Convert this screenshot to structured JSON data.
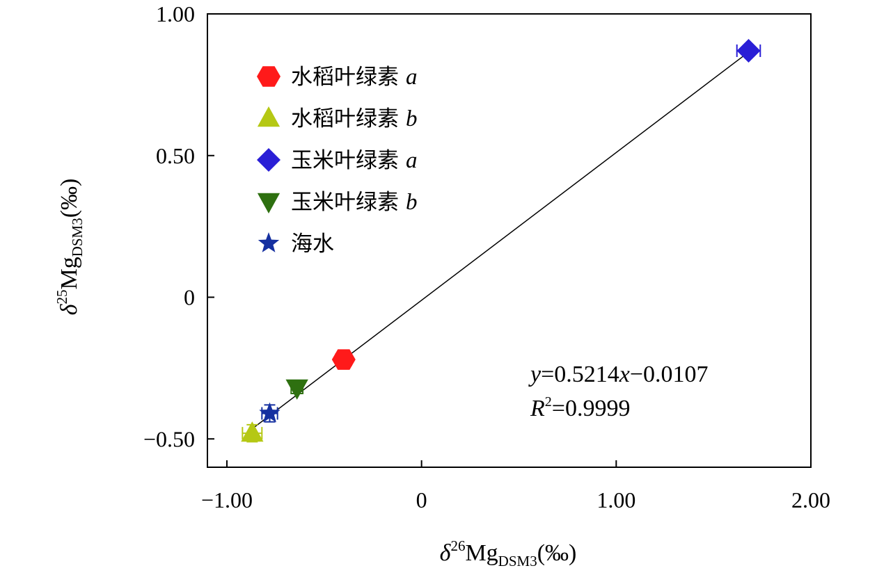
{
  "chart_data": {
    "type": "scatter",
    "xlabel": {
      "symbol": "δ",
      "sup": "26",
      "base": "Mg",
      "sub": "DSM3",
      "unit": "(‰)"
    },
    "ylabel": {
      "symbol": "δ",
      "sup": "25",
      "base": "Mg",
      "sub": "DSM3",
      "unit": "(‰)"
    },
    "xlim": [
      -1.1,
      2.0
    ],
    "ylim": [
      -0.6,
      1.0
    ],
    "x_ticks": [
      {
        "value": -1.0,
        "label": "−1.00"
      },
      {
        "value": 0,
        "label": "0"
      },
      {
        "value": 1.0,
        "label": "1.00"
      },
      {
        "value": 2.0,
        "label": "2.00"
      }
    ],
    "y_ticks": [
      {
        "value": -0.5,
        "label": "−0.50"
      },
      {
        "value": 0,
        "label": "0"
      },
      {
        "value": 0.5,
        "label": "0.50"
      },
      {
        "value": 1.0,
        "label": "1.00"
      }
    ],
    "series": [
      {
        "name": "水稻叶绿素",
        "var": "a",
        "marker": "hexagon",
        "color": "#ff1a1a",
        "x": -0.4,
        "y": -0.22,
        "xerr": 0.04,
        "yerr": 0.03
      },
      {
        "name": "水稻叶绿素",
        "var": "b",
        "marker": "triangle-up",
        "color": "#b5c814",
        "x": -0.87,
        "y": -0.48,
        "xerr": 0.05,
        "yerr": 0.03
      },
      {
        "name": "玉米叶绿素",
        "var": "a",
        "marker": "diamond",
        "color": "#2a1fd6",
        "x": 1.68,
        "y": 0.87,
        "xerr": 0.06,
        "yerr": 0.02
      },
      {
        "name": "玉米叶绿素",
        "var": "b",
        "marker": "triangle-down",
        "color": "#2e7010",
        "x": -0.64,
        "y": -0.32,
        "xerr": 0.03,
        "yerr": 0.02
      },
      {
        "name": "海水",
        "var": "",
        "marker": "star",
        "color": "#1530a0",
        "x": -0.78,
        "y": -0.41,
        "xerr": 0.04,
        "yerr": 0.03
      }
    ],
    "fit": {
      "slope": 0.5214,
      "intercept": -0.0107,
      "x_range": [
        -0.9,
        1.68
      ],
      "equation": "=0.5214",
      "equation_x": "x",
      "equation_rest": "−0.0107",
      "equation_y": "y",
      "r2_label": "R",
      "r2_sup": "2",
      "r2_value": "=0.9999"
    },
    "legend_position": "top-left"
  }
}
